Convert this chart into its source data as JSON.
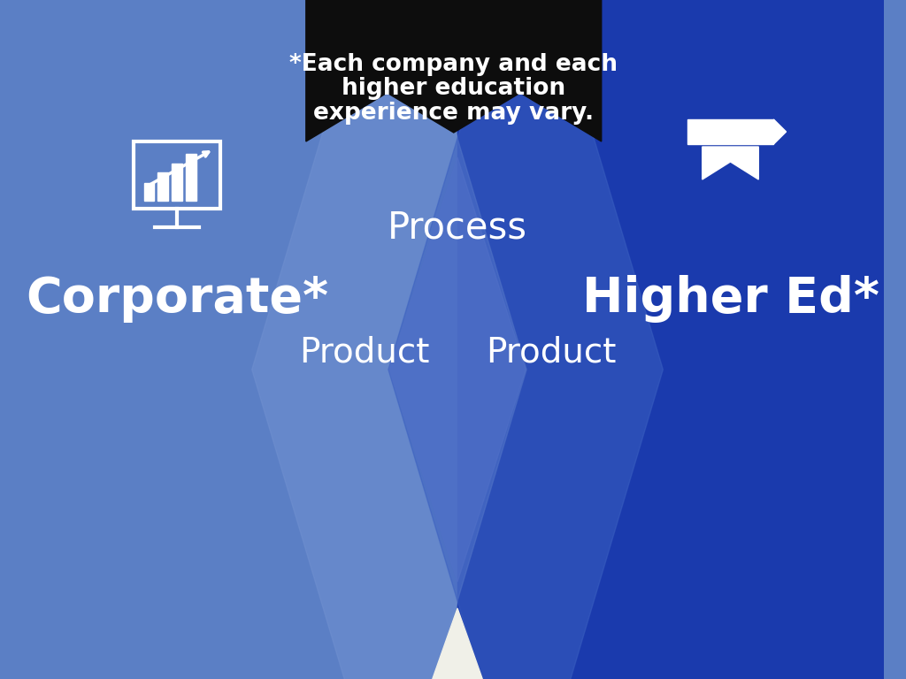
{
  "bg_left_color": "#5b7fc5",
  "bg_right_color": "#1a3aad",
  "text_color": "#ffffff",
  "banner_color": "#0d0d0d",
  "corporate_label": "Corporate*",
  "higher_ed_label": "Higher Ed*",
  "process_label": "Process",
  "product_left_label": "Product",
  "product_right_label": "Product",
  "banner_line1": "*Each company and each",
  "banner_line2": "higher education",
  "banner_line3": "experience may vary.",
  "corporate_fontsize": 40,
  "higher_ed_fontsize": 40,
  "process_fontsize": 30,
  "product_fontsize": 28,
  "banner_fontsize": 19
}
